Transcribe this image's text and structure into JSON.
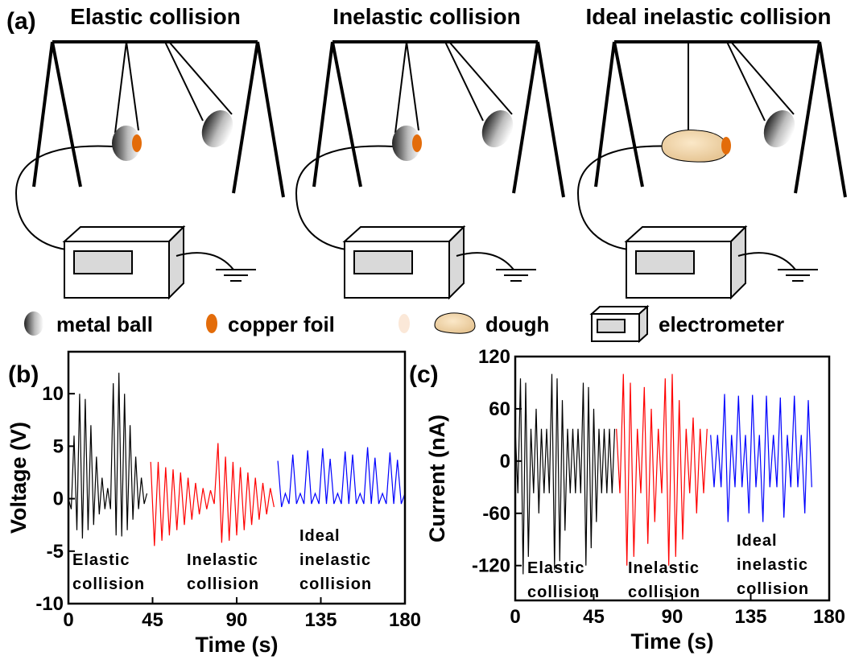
{
  "panel_a": {
    "label": "(a)",
    "titles": [
      "Elastic collision",
      "Inelastic collision",
      "Ideal inelastic collision"
    ],
    "legend": [
      "metal ball",
      "copper foil",
      "dough",
      "electrometer"
    ]
  },
  "chart_data": [
    {
      "type": "line",
      "label": "(b)",
      "x_label": "Time (s)",
      "y_label": "Voltage (V)",
      "xlim": [
        0,
        180
      ],
      "xticks": [
        0,
        45,
        90,
        135,
        180
      ],
      "ylim": [
        -10,
        14
      ],
      "yticks": [
        -10,
        -5,
        0,
        5,
        10
      ],
      "annotations": [
        [
          "Elastic",
          "collision"
        ],
        [
          "Inelastic",
          "collision"
        ],
        [
          "Ideal",
          "inelastic",
          "collision"
        ]
      ],
      "series": [
        {
          "color": "#000000",
          "x": [
            0,
            1.5,
            3,
            4.5,
            6,
            7.5,
            9,
            10.5,
            12,
            13.5,
            15,
            16.5,
            18,
            19.5,
            21,
            22.5,
            24,
            25.5,
            27,
            28.5,
            30,
            31.5,
            33,
            34.5,
            36,
            37.5,
            39,
            40.5,
            42
          ],
          "values": [
            0,
            -1,
            6,
            -3,
            10,
            -3.8,
            9.5,
            -3,
            7,
            -2.5,
            4,
            -1.5,
            2,
            -1,
            1,
            -1,
            11,
            -3.5,
            12,
            -3.6,
            10,
            -3,
            7,
            -2,
            4,
            -1,
            2,
            -0.5,
            0.5
          ]
        },
        {
          "color": "#ff0000",
          "x": [
            44,
            46,
            48,
            50,
            52,
            54,
            56,
            58,
            60,
            62,
            64,
            66,
            68,
            70,
            72,
            74,
            76,
            78,
            80,
            82,
            84,
            86,
            88,
            90,
            92,
            94,
            96,
            98,
            100,
            102,
            104,
            106,
            108,
            110
          ],
          "values": [
            3.5,
            -4.5,
            3.5,
            -4,
            3,
            -3.5,
            2.8,
            -3,
            2.5,
            -2.5,
            2,
            -2,
            1.5,
            -1.5,
            1,
            -1,
            0.8,
            -0.5,
            5.3,
            -4.2,
            4,
            -4,
            3.5,
            -3.5,
            3,
            -3,
            2.5,
            -2.5,
            2,
            -2,
            1.5,
            -1.5,
            1,
            -0.8
          ]
        },
        {
          "color": "#0000ff",
          "x": [
            112,
            114,
            116,
            118,
            120,
            122,
            124,
            126,
            128,
            130,
            132,
            134,
            136,
            138,
            140,
            142,
            144,
            146,
            148,
            150,
            152,
            154,
            156,
            158,
            160,
            162,
            164,
            166,
            168,
            170,
            172,
            174,
            176,
            178,
            180
          ],
          "values": [
            3.6,
            -0.8,
            0.5,
            -0.5,
            4.2,
            -0.5,
            0.5,
            -0.5,
            4.6,
            -0.5,
            0.5,
            -0.5,
            4.8,
            -0.5,
            3.8,
            -0.5,
            0.5,
            -0.5,
            4.5,
            -0.5,
            4.2,
            -0.5,
            0.5,
            -0.5,
            4.9,
            -0.5,
            3.9,
            -0.5,
            0.5,
            -0.5,
            4.4,
            -0.5,
            3.7,
            -0.5,
            0.5
          ]
        }
      ]
    },
    {
      "type": "line",
      "label": "(c)",
      "x_label": "Time (s)",
      "y_label": "Current (nA)",
      "xlim": [
        0,
        180
      ],
      "xticks": [
        0,
        45,
        90,
        135,
        180
      ],
      "ylim": [
        -160,
        120
      ],
      "yticks": [
        -120,
        -60,
        0,
        60,
        120
      ],
      "annotations": [
        [
          "Elastic",
          "collision"
        ],
        [
          "Inelastic",
          "collision"
        ],
        [
          "Ideal",
          "inelastic",
          "collision"
        ]
      ],
      "series": [
        {
          "color": "#000000",
          "x": [
            0,
            1.5,
            3,
            4.5,
            6,
            7.5,
            9,
            10.5,
            12,
            13.5,
            15,
            16.5,
            18,
            19.5,
            21,
            22.5,
            24,
            25.5,
            27,
            28.5,
            30,
            31.5,
            33,
            34.5,
            36,
            37.5,
            39,
            40.5,
            42,
            43.5,
            45,
            46.5,
            48,
            49.5,
            51,
            52.5,
            54,
            55.5,
            57
          ],
          "values": [
            37,
            -37,
            95,
            -130,
            90,
            -110,
            37,
            -37,
            60,
            -60,
            37,
            -37,
            37,
            -37,
            100,
            -125,
            95,
            -115,
            70,
            -80,
            37,
            -37,
            37,
            -37,
            37,
            -37,
            90,
            -120,
            85,
            -100,
            60,
            -70,
            37,
            -37,
            37,
            -37,
            37,
            -37,
            37
          ]
        },
        {
          "color": "#ff0000",
          "x": [
            58,
            60,
            62,
            64,
            66,
            68,
            70,
            72,
            74,
            76,
            78,
            80,
            82,
            84,
            86,
            88,
            90,
            92,
            94,
            96,
            98,
            100,
            102,
            104,
            106,
            108,
            110
          ],
          "values": [
            37,
            -37,
            100,
            -120,
            90,
            -110,
            37,
            -37,
            85,
            -95,
            60,
            -70,
            37,
            -37,
            95,
            -120,
            100,
            -110,
            70,
            -90,
            37,
            -37,
            50,
            -60,
            37,
            -37,
            37
          ]
        },
        {
          "color": "#0000ff",
          "x": [
            112,
            114,
            116,
            118,
            120,
            122,
            124,
            126,
            128,
            130,
            132,
            134,
            136,
            138,
            140,
            142,
            144,
            146,
            148,
            150,
            152,
            154,
            156,
            158,
            160,
            162,
            164,
            166,
            168,
            170
          ],
          "values": [
            30,
            -30,
            30,
            -30,
            77,
            -70,
            30,
            -30,
            75,
            -30,
            30,
            -60,
            76,
            -30,
            30,
            -70,
            75,
            -30,
            30,
            -30,
            73,
            -65,
            30,
            -30,
            75,
            -30,
            30,
            -60,
            70,
            -30
          ]
        }
      ]
    }
  ]
}
